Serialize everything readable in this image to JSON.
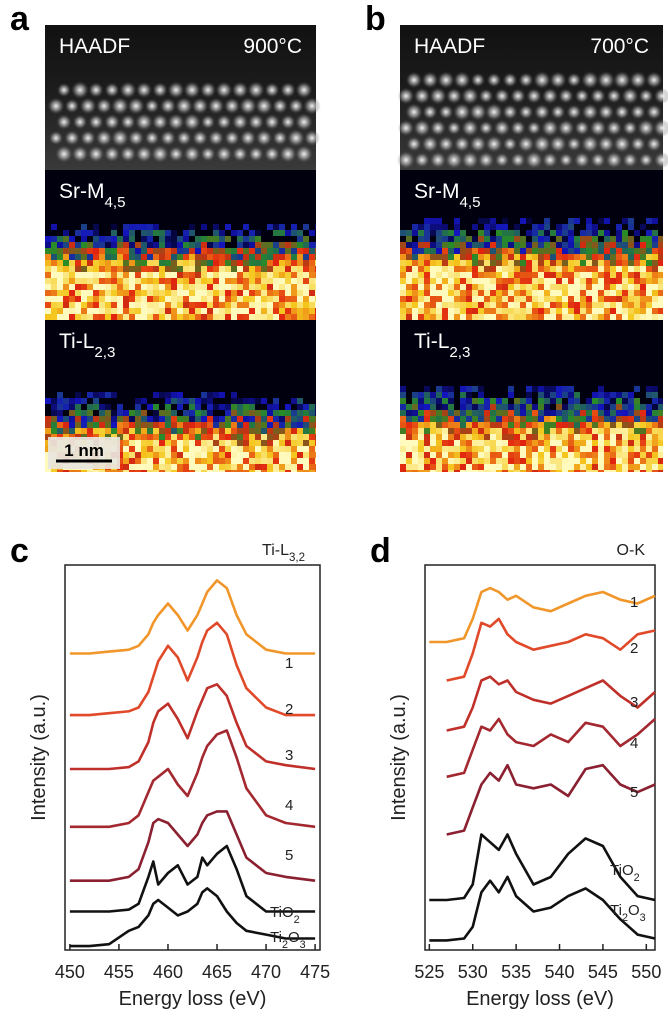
{
  "panels": [
    {
      "letter": "a",
      "temperature": "900°C",
      "scale_bar": "1 nm",
      "maps": [
        {
          "label": [
            {
              "t": "HAADF"
            }
          ]
        },
        {
          "label": [
            {
              "t": "Sr-M"
            },
            {
              "t": "4,5",
              "sub": true
            }
          ]
        },
        {
          "label": [
            {
              "t": "Ti-L"
            },
            {
              "t": "2,3",
              "sub": true
            }
          ]
        }
      ]
    },
    {
      "letter": "b",
      "temperature": "700°C",
      "maps": [
        {
          "label": [
            {
              "t": "HAADF"
            }
          ]
        },
        {
          "label": [
            {
              "t": "Sr-M"
            },
            {
              "t": "4,5",
              "sub": true
            }
          ]
        },
        {
          "label": [
            {
              "t": "Ti-L"
            },
            {
              "t": "2,3",
              "sub": true
            }
          ]
        }
      ]
    }
  ],
  "chart_data": [
    {
      "type": "line",
      "letter": "c",
      "title": [
        {
          "t": "Ti-L"
        },
        {
          "t": "3,2",
          "sub": true
        }
      ],
      "x_label": "Energy loss (eV)",
      "y_label": "Intensity (a.u.)",
      "x": [
        450,
        452,
        454,
        456,
        457,
        458,
        458.5,
        459,
        460,
        461,
        462,
        463,
        463.5,
        464,
        465,
        466,
        467,
        468,
        470,
        472,
        475
      ],
      "xlim": [
        449.5,
        475.5
      ],
      "xticks": [
        450,
        455,
        460,
        465,
        470,
        475
      ],
      "ylim": [
        0,
        10
      ],
      "series": [
        {
          "name": [
            {
              "t": "1"
            }
          ],
          "color": "#f0962a",
          "values": [
            7.7,
            7.7,
            7.75,
            7.8,
            7.9,
            8.2,
            8.5,
            8.7,
            9.0,
            8.7,
            8.3,
            8.7,
            9.0,
            9.3,
            9.6,
            9.4,
            8.7,
            8.2,
            7.8,
            7.7,
            7.7
          ]
        },
        {
          "name": [
            {
              "t": "2"
            }
          ],
          "color": "#e04a2a",
          "values": [
            6.1,
            6.1,
            6.15,
            6.2,
            6.3,
            6.7,
            7.1,
            7.5,
            7.9,
            7.6,
            7.0,
            7.6,
            8.0,
            8.3,
            8.5,
            8.2,
            7.4,
            6.8,
            6.3,
            6.1,
            6.1
          ]
        },
        {
          "name": [
            {
              "t": "3"
            }
          ],
          "color": "#c0302a",
          "values": [
            4.7,
            4.7,
            4.7,
            4.75,
            4.9,
            5.4,
            5.9,
            6.2,
            6.4,
            6.0,
            5.5,
            6.2,
            6.5,
            6.8,
            6.9,
            6.6,
            5.9,
            5.3,
            4.9,
            4.8,
            4.7
          ]
        },
        {
          "name": [
            {
              "t": "4"
            }
          ],
          "color": "#a42830",
          "values": [
            3.2,
            3.2,
            3.2,
            3.3,
            3.5,
            4.1,
            4.4,
            4.5,
            4.7,
            4.3,
            4.0,
            4.6,
            5.0,
            5.3,
            5.6,
            5.7,
            5.0,
            4.2,
            3.5,
            3.3,
            3.2
          ]
        },
        {
          "name": [
            {
              "t": "5"
            }
          ],
          "color": "#8a2030",
          "values": [
            1.8,
            1.8,
            1.8,
            1.9,
            2.1,
            2.8,
            3.3,
            3.4,
            3.3,
            3.0,
            2.7,
            3.0,
            3.3,
            3.5,
            3.6,
            3.6,
            3.0,
            2.4,
            2.0,
            1.9,
            1.8
          ]
        },
        {
          "name": [
            {
              "t": "TiO"
            },
            {
              "t": "2",
              "sub": true
            }
          ],
          "color": "#111111",
          "values": [
            1.0,
            1.0,
            1.0,
            1.05,
            1.2,
            1.9,
            2.3,
            1.7,
            2.0,
            2.2,
            1.7,
            1.9,
            2.4,
            2.2,
            2.5,
            2.7,
            2.1,
            1.4,
            1.0,
            1.0,
            1.0
          ]
        },
        {
          "name": [
            {
              "t": "Ti"
            },
            {
              "t": "2",
              "sub": true
            },
            {
              "t": "O"
            },
            {
              "t": "3",
              "sub": true
            }
          ],
          "color": "#111111",
          "values": [
            0.1,
            0.1,
            0.15,
            0.5,
            0.6,
            0.9,
            1.2,
            1.3,
            1.1,
            0.9,
            1.0,
            1.2,
            1.5,
            1.6,
            1.4,
            1.0,
            0.7,
            0.5,
            0.4,
            0.3,
            0.3
          ]
        }
      ]
    },
    {
      "type": "line",
      "letter": "d",
      "title": [
        {
          "t": "O-K"
        }
      ],
      "x_label": "Energy loss (eV)",
      "y_label": "Intensity (a.u.)",
      "x": [
        525,
        527,
        529,
        530,
        531,
        532,
        533,
        534,
        535,
        537,
        539,
        541,
        543,
        545,
        547,
        549,
        551
      ],
      "xlim": [
        524.5,
        551
      ],
      "xticks": [
        525,
        530,
        535,
        540,
        545,
        550
      ],
      "ylim": [
        0,
        10
      ],
      "series": [
        {
          "name": [
            {
              "t": "1"
            }
          ],
          "color": "#f0962a",
          "values": [
            8.0,
            8.0,
            8.1,
            8.6,
            9.3,
            9.4,
            9.3,
            9.1,
            9.2,
            8.9,
            8.8,
            9.0,
            9.2,
            9.3,
            9.1,
            9.0,
            9.2
          ]
        },
        {
          "name": [
            {
              "t": "2"
            }
          ],
          "color": "#e04a2a",
          "values": [
            null,
            7.0,
            7.1,
            7.7,
            8.5,
            8.4,
            8.6,
            8.2,
            8.0,
            7.8,
            7.9,
            8.0,
            8.2,
            8.1,
            7.8,
            8.2,
            8.3
          ]
        },
        {
          "name": [
            {
              "t": "3"
            }
          ],
          "color": "#c0302a",
          "values": [
            null,
            5.7,
            5.8,
            6.3,
            7.0,
            7.1,
            6.9,
            7.0,
            6.7,
            6.5,
            6.4,
            6.6,
            6.8,
            7.0,
            6.6,
            6.3,
            6.7
          ]
        },
        {
          "name": [
            {
              "t": "4"
            }
          ],
          "color": "#a42830",
          "values": [
            null,
            4.5,
            4.6,
            5.2,
            5.8,
            5.7,
            6.0,
            5.6,
            5.4,
            5.3,
            5.6,
            5.4,
            5.9,
            5.8,
            5.3,
            5.6,
            6.0
          ]
        },
        {
          "name": [
            {
              "t": "5"
            }
          ],
          "color": "#8a2030",
          "values": [
            null,
            3.0,
            3.1,
            3.7,
            4.3,
            4.6,
            4.4,
            4.8,
            4.3,
            4.2,
            4.3,
            4.0,
            4.7,
            4.8,
            4.3,
            4.1,
            4.3
          ]
        },
        {
          "name": [
            {
              "t": "TiO"
            },
            {
              "t": "2",
              "sub": true
            }
          ],
          "color": "#111111",
          "values": [
            1.3,
            1.3,
            1.35,
            1.7,
            3.0,
            2.8,
            2.6,
            3.0,
            2.5,
            1.7,
            1.9,
            2.5,
            2.9,
            2.7,
            1.9,
            1.4,
            1.3
          ]
        },
        {
          "name": [
            {
              "t": "Ti"
            },
            {
              "t": "2",
              "sub": true
            },
            {
              "t": "O"
            },
            {
              "t": "3",
              "sub": true
            }
          ],
          "color": "#111111",
          "values": [
            0.25,
            0.25,
            0.3,
            0.6,
            1.5,
            1.8,
            1.5,
            1.9,
            1.4,
            1.0,
            1.1,
            1.4,
            1.6,
            1.3,
            0.8,
            0.4,
            0.3
          ]
        }
      ]
    }
  ]
}
